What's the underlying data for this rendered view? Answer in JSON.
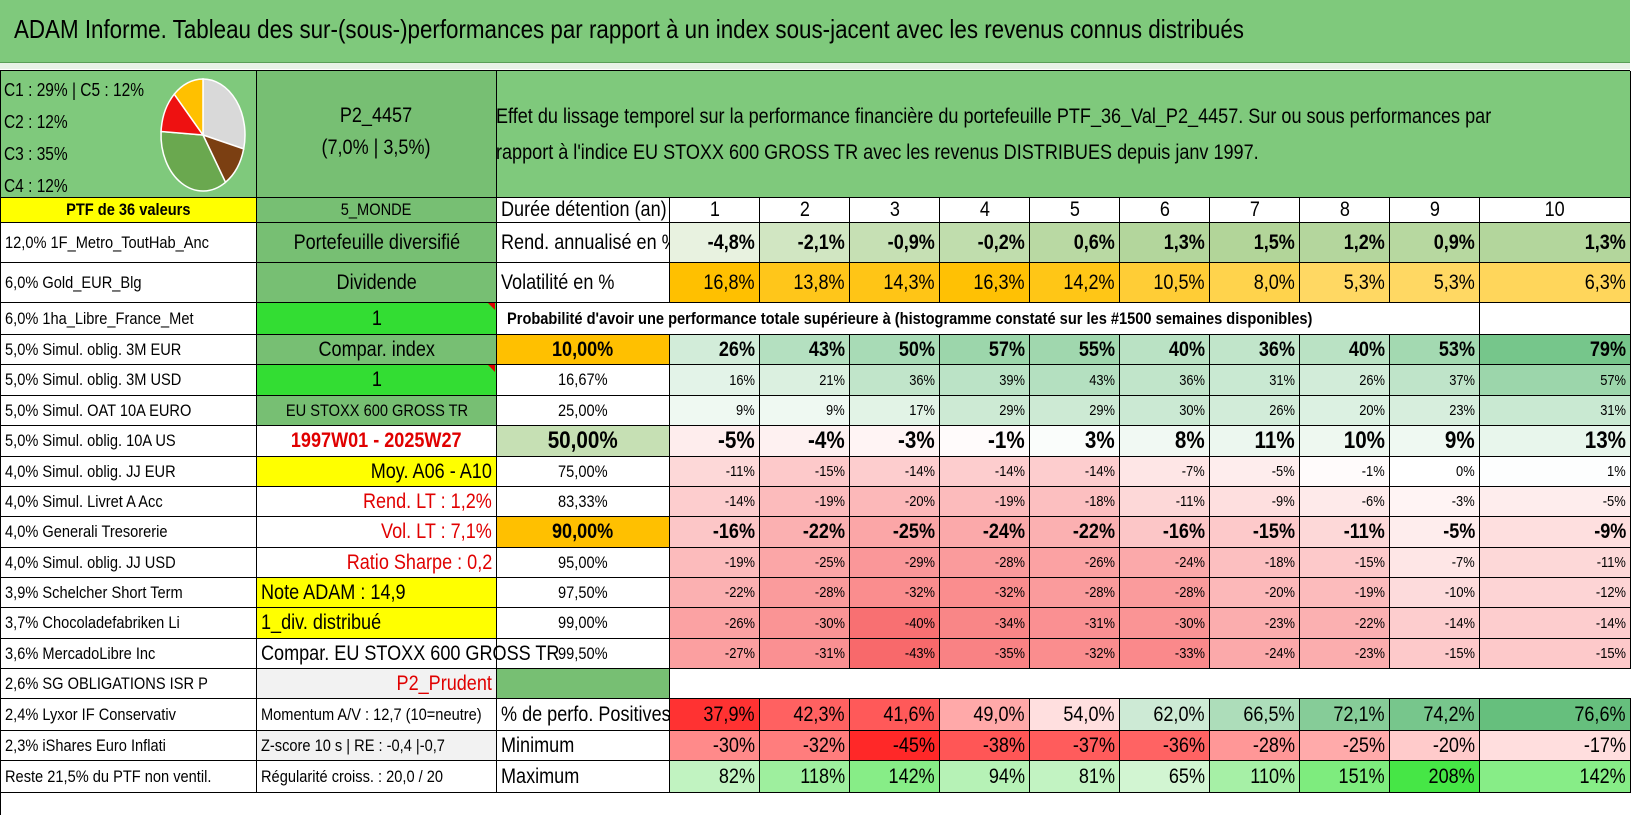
{
  "title": "ADAM Informe. Tableau des sur-(sous-)performances par rapport à un index sous-jacent avec les revenus connus distribués",
  "pie": {
    "legend": [
      "C1 : 29% | C5 : 12%",
      "C2 : 12%",
      "C3 : 35%",
      "C4 : 12%"
    ],
    "slices": [
      {
        "name": "C1",
        "value": 29,
        "color": "#d9d9d9"
      },
      {
        "name": "C5",
        "value": 12,
        "color": "#7b3f12"
      },
      {
        "name": "C3",
        "value": 35,
        "color": "#6aa84f"
      },
      {
        "name": "C2",
        "value": 12,
        "color": "#ee1111"
      },
      {
        "name": "C4",
        "value": 12,
        "color": "#ffc000"
      }
    ]
  },
  "portfolio": {
    "code": "P2_4457",
    "params": "(7,0% | 3,5%)"
  },
  "description": {
    "line1": "Effet du lissage temporel sur la performance financière du portefeuille PTF_36_Val_P2_4457. Sur ou sous performances par",
    "line2": "rapport à l'indice EU STOXX 600 GROSS TR avec les revenus DISTRIBUES depuis janv 1997."
  },
  "holdings_header": "PTF de 36 valeurs",
  "holdings": [
    "12,0% 1F_Metro_ToutHab_Anc",
    "6,0% Gold_EUR_Blg",
    "6,0% 1ha_Libre_France_Met",
    "5,0% Simul. oblig. 3M EUR",
    "5,0% Simul. oblig. 3M USD",
    "5,0% Simul. OAT 10A EURO",
    "5,0% Simul. oblig. 10A US",
    "4,0% Simul. oblig. JJ EUR",
    "4,0% Simul. Livret A Acc",
    "4,0% Generali Tresorerie",
    "4,0% Simul. oblig. JJ USD",
    "3,9% Schelcher Short Term",
    "3,7% Chocoladefabriken Li",
    "3,6% MercadoLibre Inc",
    "2,6% SG OBLIGATIONS ISR P",
    "2,4% Lyxor IF Conservativ",
    "2,3% iShares Euro Inflati",
    "Reste 21,5% du PTF non ventil."
  ],
  "info": {
    "zone": "5_MONDE",
    "type": "Portefeuille diversifié",
    "style": "Dividende",
    "v1": "1",
    "compar_index": "Compar. index",
    "v2": "1",
    "index_name": "EU STOXX 600 GROSS TR",
    "period": "1997W01 - 2025W27",
    "moy": "Moy. A06 - A10",
    "rend_lt": "Rend. LT : 1,2%",
    "vol_lt": "Vol. LT : 7,1%",
    "sharpe": "Ratio Sharpe : 0,2",
    "note": "Note ADAM : 14,9",
    "div": "1_div. distribué",
    "compar": "Compar. EU STOXX 600 GROSS TR",
    "profile": "P2_Prudent",
    "momentum": "Momentum A/V : 12,7 (10=neutre)",
    "zscore": "Z-score 10 s | RE : -0,4 |-0,7",
    "regularity": "Régularité croiss. : 20,0 / 20"
  },
  "table": {
    "duration_label": "Durée détention (an)",
    "years": [
      "1",
      "2",
      "3",
      "4",
      "5",
      "6",
      "7",
      "8",
      "9",
      "10"
    ],
    "rend_label": "Rend. annualisé en %",
    "rend": [
      "-4,8%",
      "-2,1%",
      "-0,9%",
      "-0,2%",
      "0,6%",
      "1,3%",
      "1,5%",
      "1,2%",
      "0,9%",
      "1,3%"
    ],
    "vol_label": "Volatilité en %",
    "vol": [
      "16,8%",
      "13,8%",
      "14,3%",
      "16,3%",
      "14,2%",
      "10,5%",
      "8,0%",
      "5,3%",
      "5,3%",
      "6,3%"
    ],
    "prob_title": "Probabilité d'avoir une performance totale supérieure à (histogramme constaté sur les #1500 semaines disponibles)",
    "prob_rows": [
      {
        "p": "10,00%",
        "v": [
          "26%",
          "43%",
          "50%",
          "57%",
          "55%",
          "40%",
          "36%",
          "40%",
          "53%",
          "79%"
        ]
      },
      {
        "p": "16,67%",
        "v": [
          "16%",
          "21%",
          "36%",
          "39%",
          "43%",
          "36%",
          "31%",
          "26%",
          "37%",
          "57%"
        ]
      },
      {
        "p": "25,00%",
        "v": [
          "9%",
          "9%",
          "17%",
          "29%",
          "29%",
          "30%",
          "26%",
          "20%",
          "23%",
          "31%"
        ]
      },
      {
        "p": "50,00%",
        "v": [
          "-5%",
          "-4%",
          "-3%",
          "-1%",
          "3%",
          "8%",
          "11%",
          "10%",
          "9%",
          "13%"
        ]
      },
      {
        "p": "75,00%",
        "v": [
          "-11%",
          "-15%",
          "-14%",
          "-14%",
          "-14%",
          "-7%",
          "-5%",
          "-1%",
          "0%",
          "1%"
        ]
      },
      {
        "p": "83,33%",
        "v": [
          "-14%",
          "-19%",
          "-20%",
          "-19%",
          "-18%",
          "-11%",
          "-9%",
          "-6%",
          "-3%",
          "-5%"
        ]
      },
      {
        "p": "90,00%",
        "v": [
          "-16%",
          "-22%",
          "-25%",
          "-24%",
          "-22%",
          "-16%",
          "-15%",
          "-11%",
          "-5%",
          "-9%"
        ]
      },
      {
        "p": "95,00%",
        "v": [
          "-19%",
          "-25%",
          "-29%",
          "-28%",
          "-26%",
          "-24%",
          "-18%",
          "-15%",
          "-7%",
          "-11%"
        ]
      },
      {
        "p": "97,50%",
        "v": [
          "-22%",
          "-28%",
          "-32%",
          "-32%",
          "-28%",
          "-28%",
          "-20%",
          "-19%",
          "-10%",
          "-12%"
        ]
      },
      {
        "p": "99,00%",
        "v": [
          "-26%",
          "-30%",
          "-40%",
          "-34%",
          "-31%",
          "-30%",
          "-23%",
          "-22%",
          "-14%",
          "-14%"
        ]
      },
      {
        "p": "99,50%",
        "v": [
          "-27%",
          "-31%",
          "-43%",
          "-35%",
          "-32%",
          "-33%",
          "-24%",
          "-23%",
          "-15%",
          "-15%"
        ]
      }
    ],
    "pos_label": "% de perfo. Positives",
    "pos": [
      "37,9%",
      "42,3%",
      "41,6%",
      "49,0%",
      "54,0%",
      "62,0%",
      "66,5%",
      "72,1%",
      "74,2%",
      "76,6%"
    ],
    "min_label": "Minimum",
    "min": [
      "-30%",
      "-32%",
      "-45%",
      "-38%",
      "-37%",
      "-36%",
      "-28%",
      "-25%",
      "-20%",
      "-17%"
    ],
    "max_label": "Maximum",
    "max": [
      "82%",
      "118%",
      "142%",
      "94%",
      "81%",
      "65%",
      "110%",
      "151%",
      "208%",
      "142%"
    ]
  },
  "colors": {
    "title_green": "#7fc97c",
    "mid_green": "#77bf73",
    "bright_green": "#33dd33",
    "yellow": "#ffff00",
    "orange": "#ffc000",
    "light_green": "#c6e0b4",
    "light_gray": "#f2f2f2"
  }
}
